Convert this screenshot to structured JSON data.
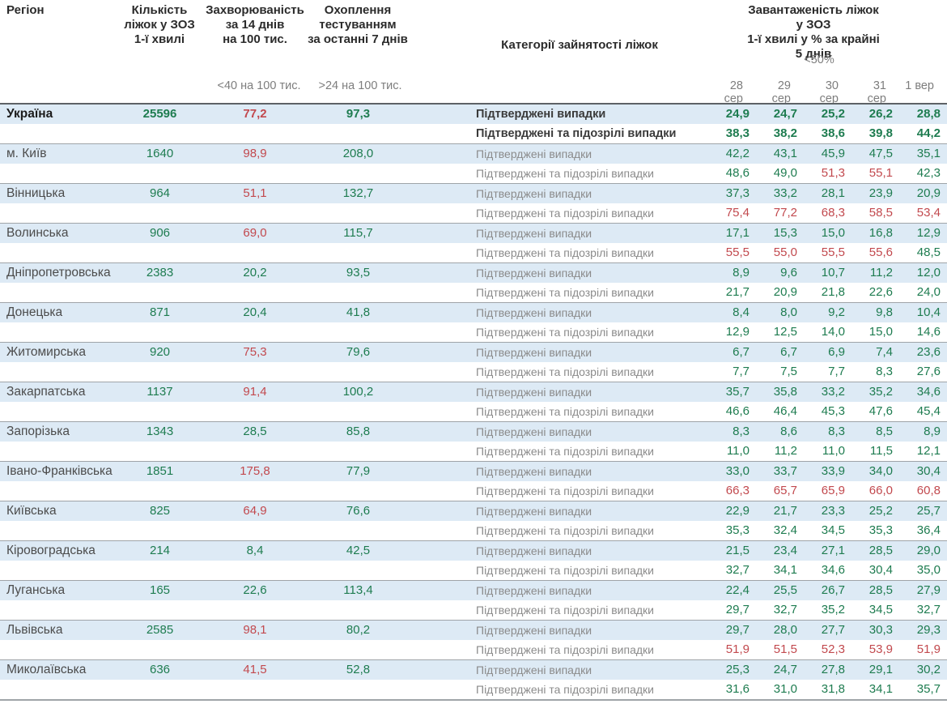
{
  "header": {
    "region": "Регіон",
    "beds": "Кількість\nліжок у ЗОЗ\n1-ї хвилі",
    "incidence": "Захворюваність\nза 14 днів\nна 100 тис.",
    "testing": "Охоплення\nтестуванням\nза останні 7 днів",
    "categories": "Категорії зайнятості ліжок",
    "occupancy": "Завантаженість ліжок у ЗОЗ\n1-ї хвилі у % за крайні 5 днів",
    "sub_incidence": "<40 на 100 тис.",
    "sub_testing": ">24 на 100 тис.",
    "sub_occupancy": "<50%",
    "dates": [
      "28 сер",
      "29 сер",
      "30 сер",
      "31 сер",
      "1 вер"
    ]
  },
  "category_labels": {
    "confirmed": "Підтверджені випадки",
    "suspected": "Підтверджені та підозрілі випадки"
  },
  "thresholds": {
    "incidence_red_per100k": 40,
    "occupancy_red_percent": 50
  },
  "colors": {
    "green": "#1e7c50",
    "red": "#c2494e",
    "stripe": "#ddeaf5"
  },
  "rows": [
    {
      "region": "Україна",
      "bold": true,
      "beds": "25596",
      "incidence": "77,2",
      "testing": "97,3",
      "confirmed": [
        "24,9",
        "24,7",
        "25,2",
        "26,2",
        "28,8"
      ],
      "suspected": [
        "38,3",
        "38,2",
        "38,6",
        "39,8",
        "44,2"
      ]
    },
    {
      "region": "м. Київ",
      "beds": "1640",
      "incidence": "98,9",
      "testing": "208,0",
      "confirmed": [
        "42,2",
        "43,1",
        "45,9",
        "47,5",
        "35,1"
      ],
      "suspected": [
        "48,6",
        "49,0",
        "51,3",
        "55,1",
        "42,3"
      ]
    },
    {
      "region": "Вінницька",
      "beds": "964",
      "incidence": "51,1",
      "testing": "132,7",
      "confirmed": [
        "37,3",
        "33,2",
        "28,1",
        "23,9",
        "20,9"
      ],
      "suspected": [
        "75,4",
        "77,2",
        "68,3",
        "58,5",
        "53,4"
      ]
    },
    {
      "region": "Волинська",
      "beds": "906",
      "incidence": "69,0",
      "testing": "115,7",
      "confirmed": [
        "17,1",
        "15,3",
        "15,0",
        "16,8",
        "12,9"
      ],
      "suspected": [
        "55,5",
        "55,0",
        "55,5",
        "55,6",
        "48,5"
      ]
    },
    {
      "region": "Дніпропетровська",
      "beds": "2383",
      "incidence": "20,2",
      "testing": "93,5",
      "confirmed": [
        "8,9",
        "9,6",
        "10,7",
        "11,2",
        "12,0"
      ],
      "suspected": [
        "21,7",
        "20,9",
        "21,8",
        "22,6",
        "24,0"
      ]
    },
    {
      "region": "Донецька",
      "beds": "871",
      "incidence": "20,4",
      "testing": "41,8",
      "confirmed": [
        "8,4",
        "8,0",
        "9,2",
        "9,8",
        "10,4"
      ],
      "suspected": [
        "12,9",
        "12,5",
        "14,0",
        "15,0",
        "14,6"
      ]
    },
    {
      "region": "Житомирська",
      "beds": "920",
      "incidence": "75,3",
      "testing": "79,6",
      "confirmed": [
        "6,7",
        "6,7",
        "6,9",
        "7,4",
        "23,6"
      ],
      "suspected": [
        "7,7",
        "7,5",
        "7,7",
        "8,3",
        "27,6"
      ]
    },
    {
      "region": "Закарпатська",
      "beds": "1137",
      "incidence": "91,4",
      "testing": "100,2",
      "confirmed": [
        "35,7",
        "35,8",
        "33,2",
        "35,2",
        "34,6"
      ],
      "suspected": [
        "46,6",
        "46,4",
        "45,3",
        "47,6",
        "45,4"
      ]
    },
    {
      "region": "Запорізька",
      "beds": "1343",
      "incidence": "28,5",
      "testing": "85,8",
      "confirmed": [
        "8,3",
        "8,6",
        "8,3",
        "8,5",
        "8,9"
      ],
      "suspected": [
        "11,0",
        "11,2",
        "11,0",
        "11,5",
        "12,1"
      ]
    },
    {
      "region": "Івано-Франківська",
      "beds": "1851",
      "incidence": "175,8",
      "testing": "77,9",
      "confirmed": [
        "33,0",
        "33,7",
        "33,9",
        "34,0",
        "30,4"
      ],
      "suspected": [
        "66,3",
        "65,7",
        "65,9",
        "66,0",
        "60,8"
      ]
    },
    {
      "region": "Київська",
      "beds": "825",
      "incidence": "64,9",
      "testing": "76,6",
      "confirmed": [
        "22,9",
        "21,7",
        "23,3",
        "25,2",
        "25,7"
      ],
      "suspected": [
        "35,3",
        "32,4",
        "34,5",
        "35,3",
        "36,4"
      ]
    },
    {
      "region": "Кіровоградська",
      "beds": "214",
      "incidence": "8,4",
      "testing": "42,5",
      "confirmed": [
        "21,5",
        "23,4",
        "27,1",
        "28,5",
        "29,0"
      ],
      "suspected": [
        "32,7",
        "34,1",
        "34,6",
        "30,4",
        "35,0"
      ]
    },
    {
      "region": "Луганська",
      "beds": "165",
      "incidence": "22,6",
      "testing": "113,4",
      "confirmed": [
        "22,4",
        "25,5",
        "26,7",
        "28,5",
        "27,9"
      ],
      "suspected": [
        "29,7",
        "32,7",
        "35,2",
        "34,5",
        "32,7"
      ]
    },
    {
      "region": "Львівська",
      "beds": "2585",
      "incidence": "98,1",
      "testing": "80,2",
      "confirmed": [
        "29,7",
        "28,0",
        "27,7",
        "30,3",
        "29,3"
      ],
      "suspected": [
        "51,9",
        "51,5",
        "52,3",
        "53,9",
        "51,9"
      ]
    },
    {
      "region": "Миколаївська",
      "beds": "636",
      "incidence": "41,5",
      "testing": "52,8",
      "confirmed": [
        "25,3",
        "24,7",
        "27,8",
        "29,1",
        "30,2"
      ],
      "suspected": [
        "31,6",
        "31,0",
        "31,8",
        "34,1",
        "35,7"
      ]
    }
  ]
}
